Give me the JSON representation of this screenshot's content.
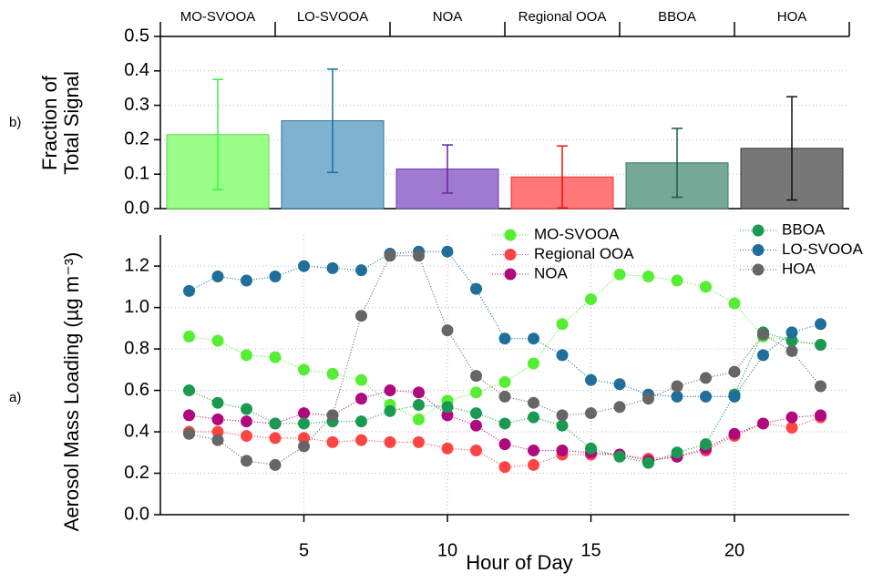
{
  "chart_data": [
    {
      "type": "bar",
      "panel_label": "b)",
      "ylabel": [
        "Fraction of",
        "Total Signal"
      ],
      "categories": [
        "MO-SVOOA",
        "LO-SVOOA",
        "NOA",
        "Regional OOA",
        "BBOA",
        "HOA"
      ],
      "values": [
        0.215,
        0.255,
        0.115,
        0.092,
        0.133,
        0.175
      ],
      "errors": [
        0.16,
        0.15,
        0.07,
        0.09,
        0.1,
        0.15
      ],
      "colors": [
        "#99ff88",
        "#7fb2d0",
        "#a07ad0",
        "#ff7777",
        "#76a898",
        "#777777"
      ],
      "edge_colors": [
        "#55dd44",
        "#2a6f9a",
        "#6a3fb0",
        "#ee3333",
        "#3a7a64",
        "#333333"
      ],
      "error_colors": [
        "#44ee44",
        "#1a6ea0",
        "#6a1fa8",
        "#ee1111",
        "#1a5a44",
        "#111111"
      ],
      "ylim": [
        0,
        0.5
      ],
      "yticks": [
        {
          "value": 0,
          "label": "0.0"
        },
        0.1,
        0.2,
        0.3,
        0.4,
        0.5
      ],
      "grid": true
    },
    {
      "type": "line",
      "panel_label": "a)",
      "ylabel": "Aerosol Mass Loading (µg m⁻³)",
      "xlabel": "Hour of Day",
      "x": [
        1,
        2,
        3,
        4,
        5,
        6,
        7,
        8,
        9,
        10,
        11,
        12,
        13,
        14,
        15,
        16,
        17,
        18,
        19,
        20,
        21,
        22,
        23
      ],
      "series": [
        {
          "name": "MO-SVOOA",
          "color": "#55ee33",
          "values": [
            0.86,
            0.84,
            0.77,
            0.76,
            0.7,
            0.68,
            0.65,
            0.53,
            0.46,
            0.55,
            0.59,
            0.64,
            0.73,
            0.92,
            1.04,
            1.16,
            1.15,
            1.13,
            1.1,
            1.02,
            0.86,
            0.84,
            0.82
          ]
        },
        {
          "name": "Regional OOA",
          "color": "#ff4444",
          "values": [
            0.4,
            0.4,
            0.38,
            0.37,
            0.37,
            0.35,
            0.36,
            0.35,
            0.35,
            0.32,
            0.31,
            0.23,
            0.24,
            0.29,
            0.29,
            0.29,
            0.27,
            0.28,
            0.31,
            0.38,
            0.44,
            0.42,
            0.47
          ]
        },
        {
          "name": "NOA",
          "color": "#b0087e",
          "values": [
            0.48,
            0.46,
            0.45,
            0.44,
            0.49,
            0.48,
            0.56,
            0.6,
            0.59,
            0.48,
            0.43,
            0.34,
            0.31,
            0.31,
            0.3,
            0.29,
            0.26,
            0.28,
            0.32,
            0.39,
            0.44,
            0.47,
            0.48
          ]
        },
        {
          "name": "BBOA",
          "color": "#1a9950",
          "values": [
            0.6,
            0.54,
            0.51,
            0.44,
            0.44,
            0.45,
            0.45,
            0.5,
            0.53,
            0.52,
            0.49,
            0.44,
            0.47,
            0.43,
            0.32,
            0.28,
            0.25,
            0.3,
            0.34,
            0.58,
            0.88,
            0.84,
            0.82
          ]
        },
        {
          "name": "LO-SVOOA",
          "color": "#1f6e9c",
          "values": [
            1.08,
            1.15,
            1.13,
            1.15,
            1.2,
            1.19,
            1.18,
            1.26,
            1.27,
            1.27,
            1.09,
            0.85,
            0.85,
            0.77,
            0.65,
            0.63,
            0.58,
            0.57,
            0.57,
            0.57,
            0.77,
            0.88,
            0.92
          ]
        },
        {
          "name": "HOA",
          "color": "#666666",
          "values": [
            0.39,
            0.36,
            0.26,
            0.24,
            0.33,
            0.48,
            0.96,
            1.25,
            1.25,
            0.89,
            0.67,
            0.57,
            0.54,
            0.48,
            0.49,
            0.52,
            0.56,
            0.62,
            0.66,
            0.69,
            0.87,
            0.79,
            0.62
          ]
        }
      ],
      "xlim": [
        0,
        24
      ],
      "xticks": [
        5,
        10,
        15,
        20
      ],
      "ylim": [
        0,
        1.35
      ],
      "yticks": [
        {
          "value": 0,
          "label": "0.0"
        },
        0.2,
        0.4,
        0.6,
        0.8,
        {
          "value": 1,
          "label": "1.0"
        },
        1.2
      ],
      "grid": true
    }
  ]
}
